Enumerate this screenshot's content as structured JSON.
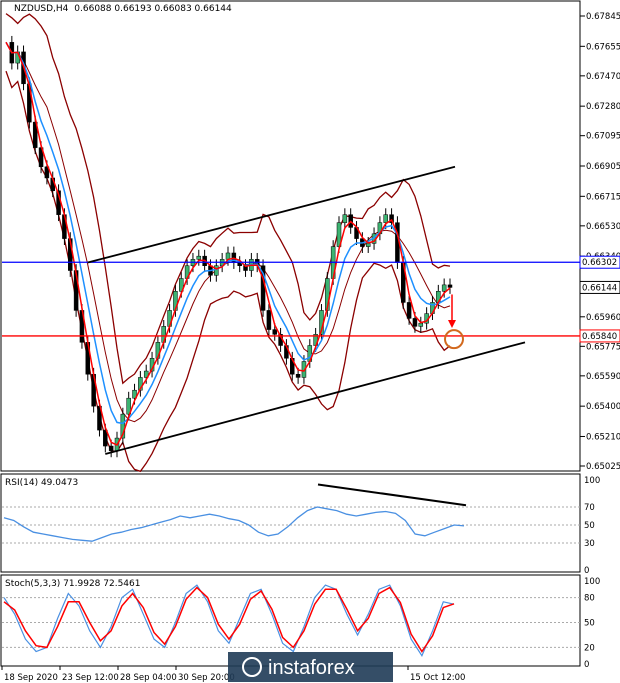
{
  "chart_data": [
    {
      "type": "candlestick",
      "title": "NZDUSD,H4",
      "ohlc_label": "0.66088 0.66193 0.66083 0.66144",
      "y_ticks": [
        "0.67845",
        "0.67655",
        "0.67470",
        "0.67280",
        "0.67095",
        "0.66905",
        "0.66715",
        "0.66530",
        "0.66340",
        "0.66150",
        "0.65960",
        "0.65775",
        "0.65590",
        "0.65400",
        "0.65210",
        "0.65025"
      ],
      "ylim": [
        0.65025,
        0.67845
      ],
      "x_ticks": [
        "18 Sep 2020",
        "23 Sep 12:00",
        "28 Sep 04:00",
        "30 Sep 20:00",
        "15 Oct 12:00"
      ],
      "close_path": [
        0.6768,
        0.6755,
        0.6762,
        0.6742,
        0.6718,
        0.6702,
        0.669,
        0.6683,
        0.6675,
        0.666,
        0.6645,
        0.6625,
        0.66,
        0.658,
        0.656,
        0.654,
        0.6525,
        0.6515,
        0.6512,
        0.652,
        0.6535,
        0.6545,
        0.655,
        0.6558,
        0.6562,
        0.657,
        0.658,
        0.659,
        0.66,
        0.6612,
        0.662,
        0.6628,
        0.6632,
        0.6634,
        0.6628,
        0.6622,
        0.6628,
        0.6632,
        0.6636,
        0.663,
        0.6628,
        0.6625,
        0.6632,
        0.6628,
        0.66,
        0.6588,
        0.6585,
        0.6578,
        0.657,
        0.656,
        0.6558,
        0.6568,
        0.6578,
        0.6585,
        0.66,
        0.662,
        0.664,
        0.6655,
        0.666,
        0.6652,
        0.6645,
        0.664,
        0.6642,
        0.6648,
        0.6655,
        0.666,
        0.6655,
        0.663,
        0.6605,
        0.6595,
        0.659,
        0.6592,
        0.6598,
        0.6605,
        0.6612,
        0.6616,
        0.66144
      ],
      "horizontal_lines": [
        {
          "name": "resistance",
          "value": 0.66302,
          "label": "0.66302",
          "color": "#0000ff"
        },
        {
          "name": "support",
          "value": 0.6584,
          "label": "0.65840",
          "color": "#ff0000"
        },
        {
          "name": "last-price",
          "value": 0.66144,
          "label": "0.66144",
          "color": "#000000"
        }
      ],
      "channel_upper": [
        [
          0.663,
          0.669
        ]
      ],
      "channel_lower": [
        [
          0.651,
          0.658
        ]
      ]
    },
    {
      "type": "line",
      "indicator": "RSI(14)",
      "label": "RSI(14) 49.0473",
      "ylim": [
        0,
        100
      ],
      "y_ticks": [
        "100",
        "70",
        "50",
        "30",
        "0"
      ],
      "values": [
        58,
        55,
        48,
        42,
        40,
        38,
        36,
        34,
        33,
        32,
        36,
        40,
        42,
        45,
        47,
        50,
        53,
        56,
        60,
        58,
        60,
        62,
        60,
        57,
        55,
        50,
        42,
        38,
        40,
        48,
        58,
        66,
        70,
        68,
        66,
        62,
        60,
        62,
        64,
        65,
        63,
        55,
        40,
        38,
        42,
        46,
        50,
        49
      ]
    },
    {
      "type": "line",
      "indicator": "Stoch(5,3,3)",
      "label": "Stoch(5,3,3) 71.9928 72.5461",
      "ylim": [
        0,
        100
      ],
      "y_ticks": [
        "100",
        "80",
        "50",
        "20",
        "0"
      ],
      "main": [
        80,
        60,
        30,
        15,
        20,
        55,
        85,
        70,
        40,
        20,
        45,
        80,
        90,
        60,
        30,
        20,
        50,
        85,
        95,
        75,
        40,
        25,
        55,
        85,
        90,
        60,
        25,
        15,
        45,
        80,
        95,
        90,
        60,
        35,
        60,
        90,
        95,
        70,
        30,
        10,
        40,
        75,
        72
      ],
      "signal": [
        75,
        65,
        40,
        22,
        20,
        45,
        75,
        75,
        50,
        28,
        40,
        70,
        85,
        68,
        38,
        24,
        45,
        78,
        92,
        80,
        48,
        30,
        48,
        78,
        88,
        66,
        32,
        20,
        40,
        72,
        90,
        90,
        66,
        40,
        55,
        85,
        92,
        74,
        36,
        15,
        34,
        68,
        72.5
      ]
    }
  ],
  "watermark": "instaforex",
  "colors": {
    "ma": "#ff0000",
    "ma_slow": "#1e90ff",
    "bands": "#8b0000",
    "rsi": "#4a90e2",
    "candle_up": "#2e8b2e",
    "candle_dn": "#2e8b2e"
  }
}
